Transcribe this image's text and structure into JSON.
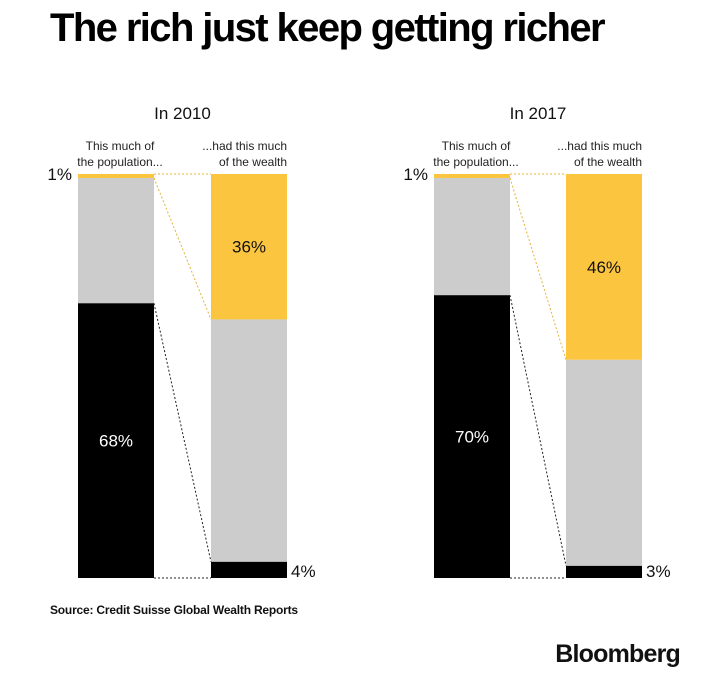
{
  "title": "The rich just keep getting richer",
  "source": "Source: Credit Suisse Global Wealth Reports",
  "brand": "Bloomberg",
  "colors": {
    "top": "#fbc540",
    "middle": "#cccccc",
    "bottom": "#000000"
  },
  "chart_data": [
    {
      "type": "bar",
      "panel_title": "In 2010",
      "population_label": [
        "This much of",
        "the population..."
      ],
      "wealth_label": [
        "...had this much",
        "of the wealth"
      ],
      "population": {
        "top_pct": 1,
        "middle_pct": 31,
        "bottom_pct": 68
      },
      "wealth": {
        "top_pct": 36,
        "middle_pct": 60,
        "bottom_pct": 4
      },
      "labels": {
        "top_population": "1%",
        "bottom_population": "68%",
        "top_wealth": "36%",
        "bottom_wealth": "4%"
      }
    },
    {
      "type": "bar",
      "panel_title": "In 2017",
      "population_label": [
        "This much of",
        "the population..."
      ],
      "wealth_label": [
        "...had this much",
        "of the wealth"
      ],
      "population": {
        "top_pct": 1,
        "middle_pct": 29,
        "bottom_pct": 70
      },
      "wealth": {
        "top_pct": 46,
        "middle_pct": 51,
        "bottom_pct": 3
      },
      "labels": {
        "top_population": "1%",
        "bottom_population": "70%",
        "top_wealth": "46%",
        "bottom_wealth": "3%"
      }
    }
  ]
}
